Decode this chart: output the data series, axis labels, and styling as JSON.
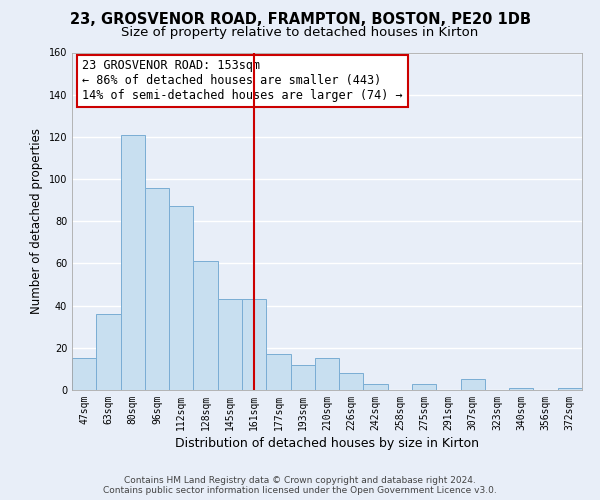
{
  "title": "23, GROSVENOR ROAD, FRAMPTON, BOSTON, PE20 1DB",
  "subtitle": "Size of property relative to detached houses in Kirton",
  "xlabel": "Distribution of detached houses by size in Kirton",
  "ylabel": "Number of detached properties",
  "bin_labels": [
    "47sqm",
    "63sqm",
    "80sqm",
    "96sqm",
    "112sqm",
    "128sqm",
    "145sqm",
    "161sqm",
    "177sqm",
    "193sqm",
    "210sqm",
    "226sqm",
    "242sqm",
    "258sqm",
    "275sqm",
    "291sqm",
    "307sqm",
    "323sqm",
    "340sqm",
    "356sqm",
    "372sqm"
  ],
  "bar_heights": [
    15,
    36,
    121,
    96,
    87,
    61,
    43,
    43,
    17,
    12,
    15,
    8,
    3,
    0,
    3,
    0,
    5,
    0,
    1,
    0,
    1
  ],
  "highlight_bar_index": 7,
  "bar_color_normal": "#c8dff0",
  "bar_edge_color": "#7aadd4",
  "vline_color": "#cc0000",
  "annotation_title": "23 GROSVENOR ROAD: 153sqm",
  "annotation_line1": "← 86% of detached houses are smaller (443)",
  "annotation_line2": "14% of semi-detached houses are larger (74) →",
  "annotation_box_color": "#ffffff",
  "annotation_box_edge": "#cc0000",
  "ylim": [
    0,
    160
  ],
  "yticks": [
    0,
    20,
    40,
    60,
    80,
    100,
    120,
    140,
    160
  ],
  "footer1": "Contains HM Land Registry data © Crown copyright and database right 2024.",
  "footer2": "Contains public sector information licensed under the Open Government Licence v3.0.",
  "background_color": "#e8eef8",
  "grid_color": "#ffffff",
  "title_fontsize": 10.5,
  "subtitle_fontsize": 9.5,
  "axis_label_fontsize": 8.5,
  "tick_fontsize": 7,
  "footer_fontsize": 6.5,
  "annotation_fontsize": 8.5
}
